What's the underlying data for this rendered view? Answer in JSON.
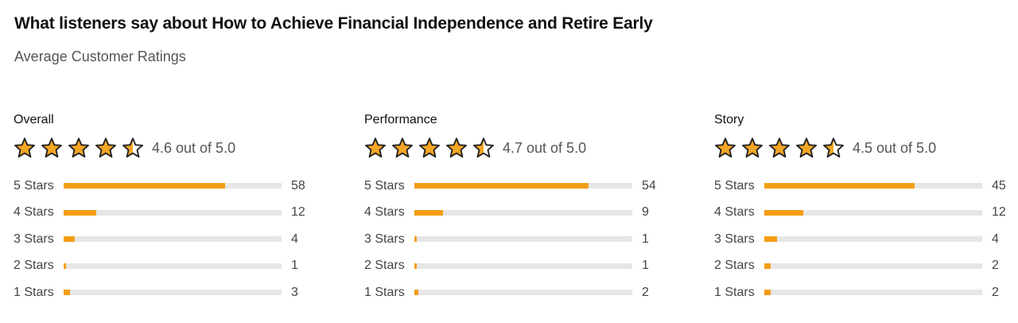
{
  "header": {
    "title": "What listeners say about How to Achieve Financial Independence and Retire Early",
    "subtitle": "Average Customer Ratings"
  },
  "colors": {
    "star_fill": "#f5a623",
    "star_stroke": "#222222",
    "bar_fill": "#f29d15",
    "bar_track": "#e6e6e6"
  },
  "ratings": [
    {
      "label": "Overall",
      "score_text": "4.6 out of 5.0",
      "score": 4.6,
      "stars": [
        "star-full-icon",
        "star-full-icon",
        "star-full-icon",
        "star-full-icon",
        "star-half-icon"
      ],
      "rows": [
        {
          "label": "5 Stars",
          "count": "58",
          "fill": 0.74
        },
        {
          "label": "4 Stars",
          "count": "12",
          "fill": 0.15
        },
        {
          "label": "3 Stars",
          "count": "4",
          "fill": 0.05
        },
        {
          "label": "2 Stars",
          "count": "1",
          "fill": 0.012
        },
        {
          "label": "1 Stars",
          "count": "3",
          "fill": 0.03
        }
      ]
    },
    {
      "label": "Performance",
      "score_text": "4.7 out of 5.0",
      "score": 4.7,
      "stars": [
        "star-full-icon",
        "star-full-icon",
        "star-full-icon",
        "star-full-icon",
        "star-half-icon"
      ],
      "rows": [
        {
          "label": "5 Stars",
          "count": "54",
          "fill": 0.8
        },
        {
          "label": "4 Stars",
          "count": "9",
          "fill": 0.13
        },
        {
          "label": "3 Stars",
          "count": "1",
          "fill": 0.012
        },
        {
          "label": "2 Stars",
          "count": "1",
          "fill": 0.012
        },
        {
          "label": "1 Stars",
          "count": "2",
          "fill": 0.02
        }
      ]
    },
    {
      "label": "Story",
      "score_text": "4.5 out of 5.0",
      "score": 4.5,
      "stars": [
        "star-full-icon",
        "star-full-icon",
        "star-full-icon",
        "star-full-icon",
        "star-half-icon"
      ],
      "rows": [
        {
          "label": "5 Stars",
          "count": "45",
          "fill": 0.69
        },
        {
          "label": "4 Stars",
          "count": "12",
          "fill": 0.18
        },
        {
          "label": "3 Stars",
          "count": "4",
          "fill": 0.06
        },
        {
          "label": "2 Stars",
          "count": "2",
          "fill": 0.03
        },
        {
          "label": "1 Stars",
          "count": "2",
          "fill": 0.03
        }
      ]
    }
  ]
}
